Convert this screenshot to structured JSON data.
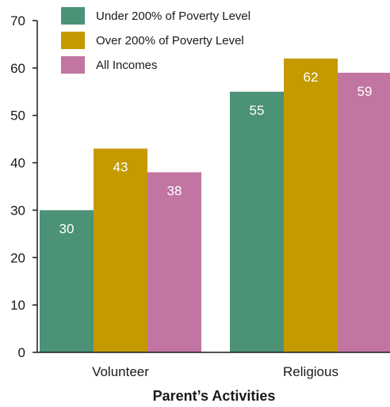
{
  "chart_data": {
    "type": "bar",
    "categories": [
      "Volunteer",
      "Religious"
    ],
    "series": [
      {
        "name": "Under 200% of Poverty Level",
        "values": [
          30,
          55
        ],
        "color": "#4b9277"
      },
      {
        "name": "Over 200% of Poverty Level",
        "values": [
          43,
          62
        ],
        "color": "#c49a00"
      },
      {
        "name": "All Incomes",
        "values": [
          38,
          59
        ],
        "color": "#c175a0"
      }
    ],
    "xlabel": "Parent’s Activities",
    "ylabel": "",
    "ylim": [
      0,
      70
    ],
    "yticks": [
      0,
      10,
      20,
      30,
      40,
      50,
      60,
      70
    ],
    "grid": false,
    "legend_position": "top-left"
  }
}
